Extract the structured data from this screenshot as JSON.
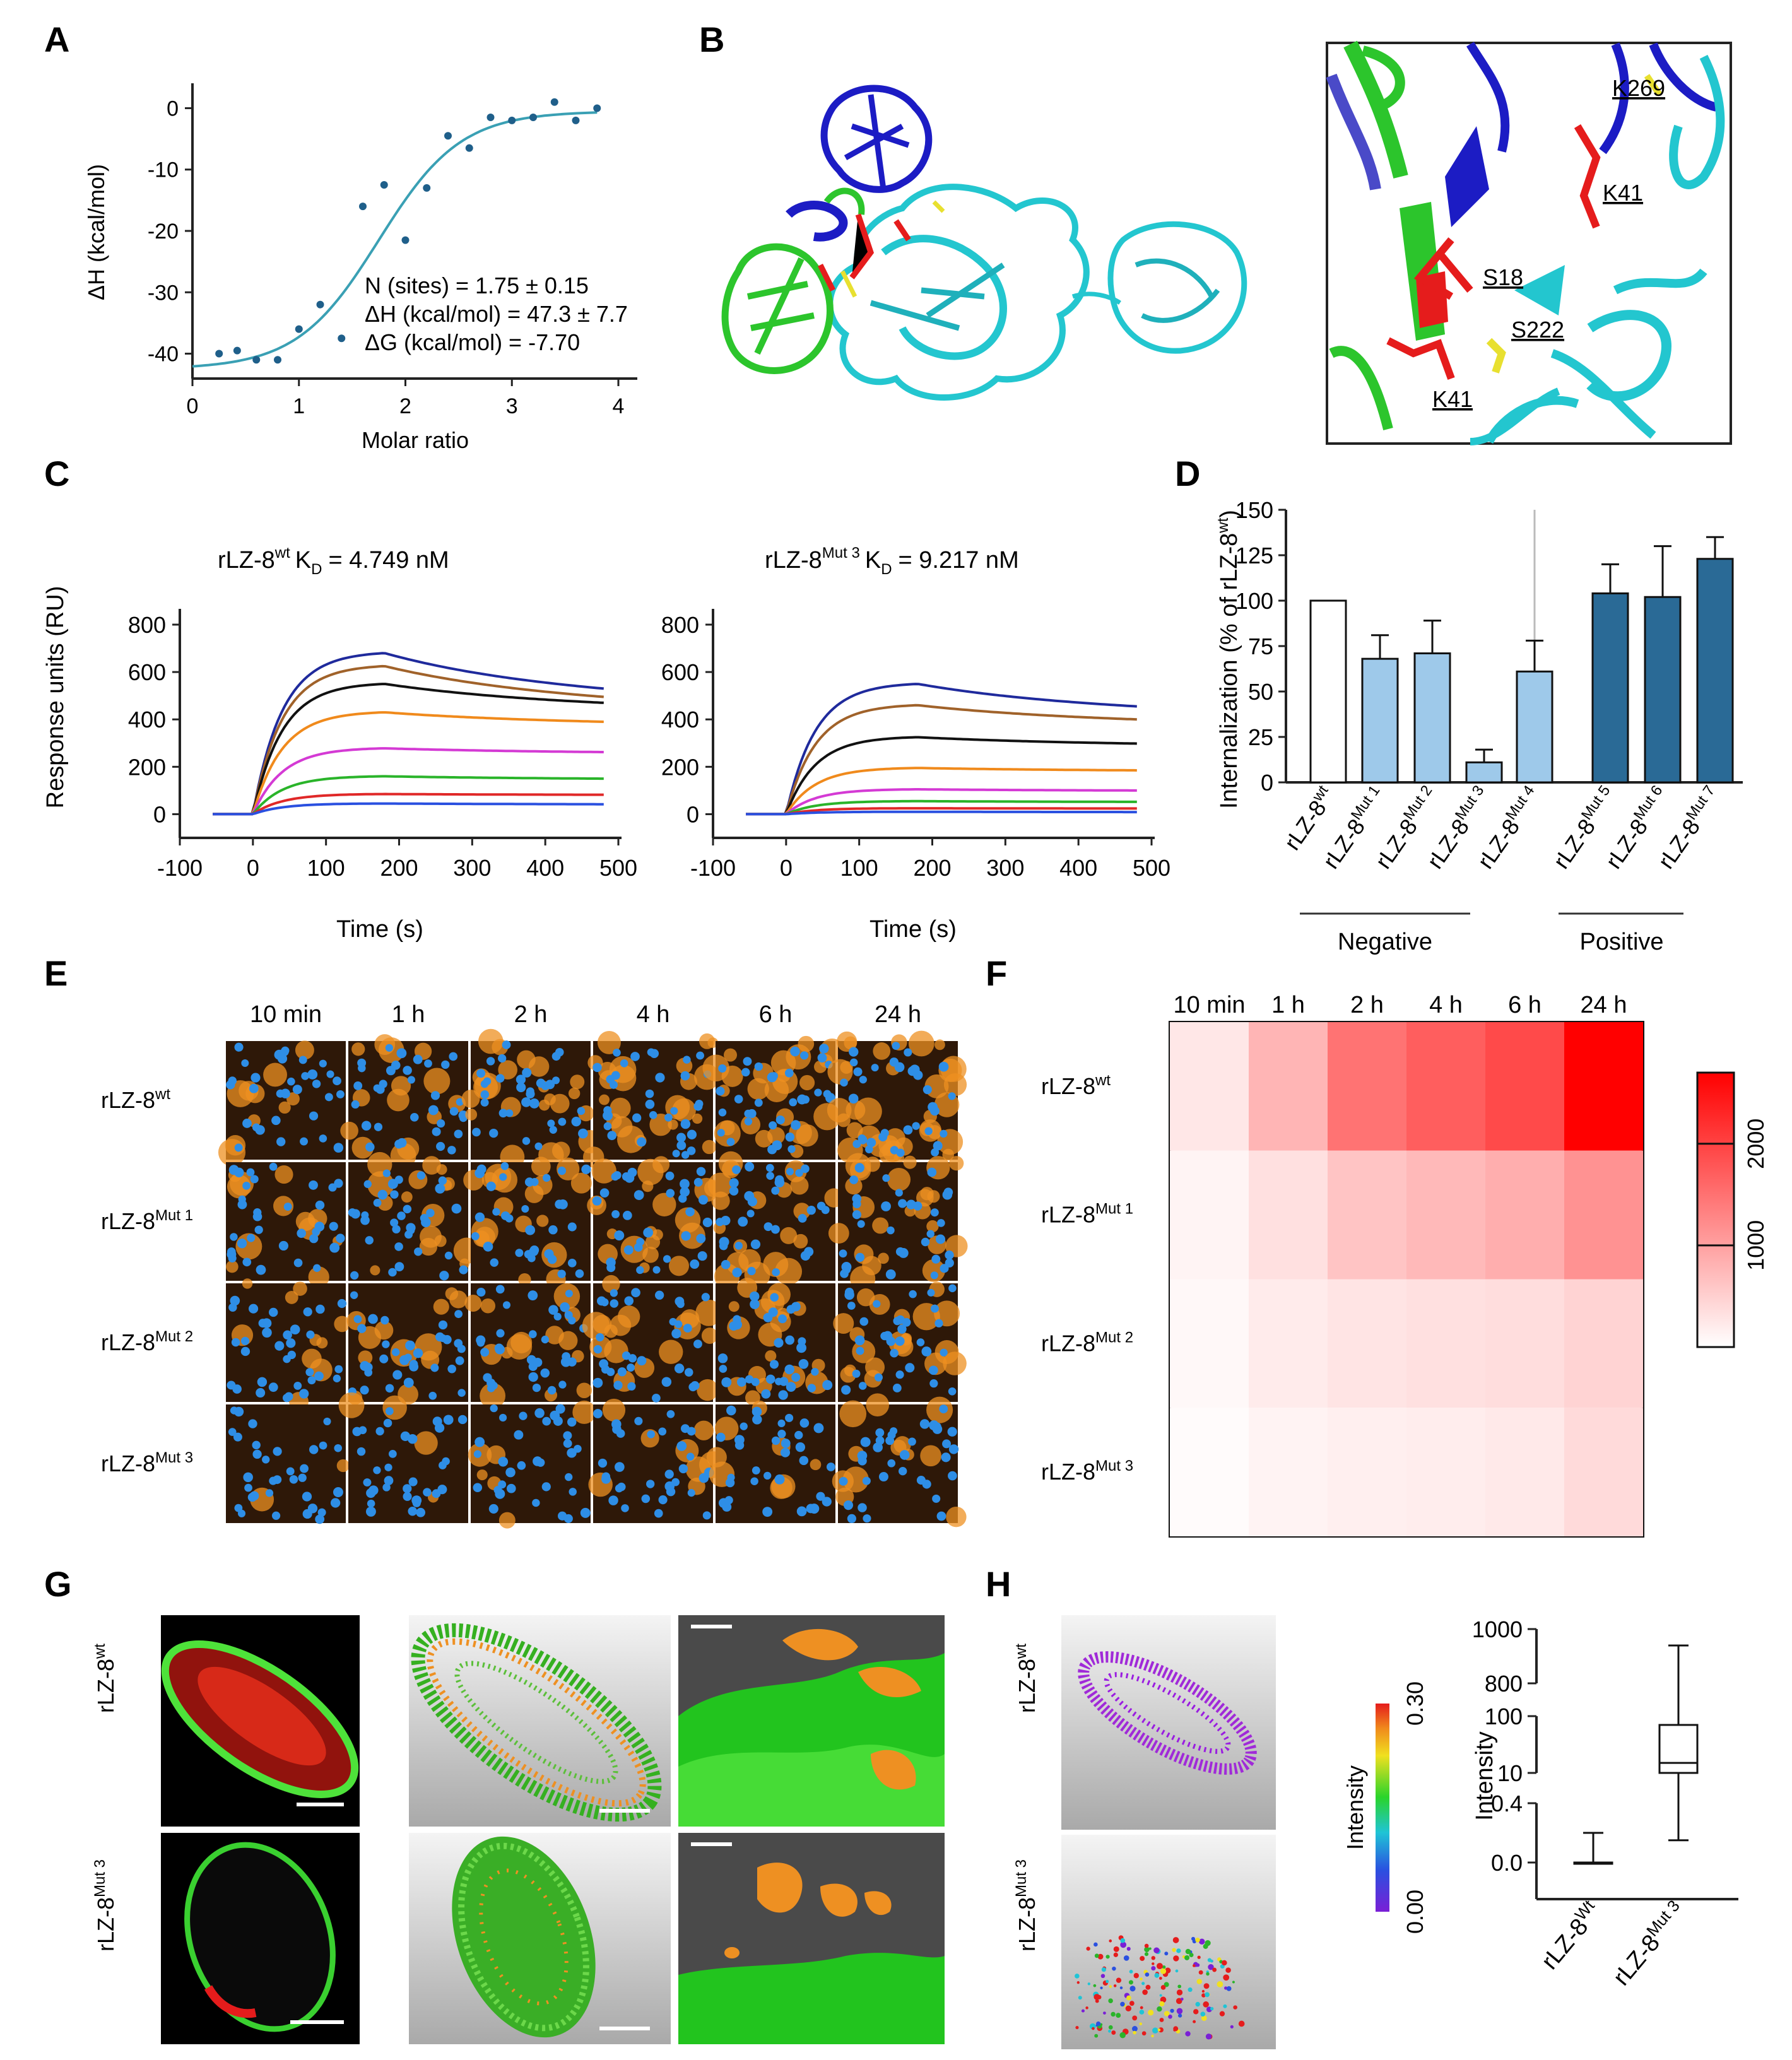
{
  "panels": {
    "A": "A",
    "B": "B",
    "C": "C",
    "D": "D",
    "E": "E",
    "F": "F",
    "G": "G",
    "H": "H"
  },
  "colors": {
    "itc_fit": "#3aa0b4",
    "itc_point": "#1f5f8a",
    "spr_series": [
      "#1f2a9c",
      "#a0622a",
      "#111111",
      "#f08a1c",
      "#d43ad4",
      "#2ab42a",
      "#e02828",
      "#2a50e0"
    ],
    "bar_negative": "#9ec9ea",
    "bar_positive": "#2a6a96",
    "bar_wt": "#ffffff",
    "heat_low": "#ffffff",
    "heat_high": "#ff0000",
    "green": "#2cc52c",
    "cyan": "#23c6cf",
    "blue": "#1c1cc4",
    "red": "#e51c1c",
    "yellow": "#e8e030",
    "orange": "#ee9022",
    "nuclei": "#2e8ee6"
  },
  "chart_data": [
    {
      "id": "A",
      "type": "scatter",
      "xlabel": "Molar ratio",
      "ylabel": "ΔH (kcal/mol)",
      "xlim": [
        0,
        4
      ],
      "ylim": [
        -42,
        2
      ],
      "xticks": [
        "0",
        "1",
        "2",
        "3",
        "4"
      ],
      "yticks": [
        "0",
        "-10",
        "-20",
        "-30",
        "-40"
      ],
      "x": [
        0.25,
        0.42,
        0.6,
        0.8,
        1.0,
        1.2,
        1.4,
        1.6,
        1.8,
        2.0,
        2.2,
        2.4,
        2.6,
        2.8,
        3.0,
        3.2,
        3.4,
        3.6,
        3.8
      ],
      "y": [
        -40,
        -39.5,
        -41,
        -41,
        -36,
        -32,
        -37.5,
        -16,
        -12.5,
        -21.5,
        -13,
        -4.5,
        -6.5,
        -1.5,
        -2,
        -1.5,
        1,
        -2,
        0
      ],
      "annotations": [
        "N (sites) = 1.75 ± 0.15",
        "ΔH (kcal/mol) = 47.3 ± 7.7",
        "ΔG (kcal/mol) = -7.70"
      ]
    },
    {
      "id": "C-left",
      "type": "line",
      "title_main": "rLZ-8",
      "title_sup": "wt",
      "title_k": "K",
      "title_sub": "D",
      "title_val": "= 4.749 nM",
      "xlabel": "Time (s)",
      "ylabel": "Response units (RU)",
      "xlim": [
        -100,
        500
      ],
      "ylim": [
        -100,
        800
      ],
      "xticks": [
        "-100",
        "0",
        "100",
        "200",
        "300",
        "400",
        "500"
      ],
      "yticks": [
        "0",
        "200",
        "400",
        "600",
        "800"
      ],
      "series": [
        {
          "name": "c1",
          "plateau": 680,
          "end": 530
        },
        {
          "name": "c2",
          "plateau": 625,
          "end": 495
        },
        {
          "name": "c3",
          "plateau": 550,
          "end": 470
        },
        {
          "name": "c4",
          "plateau": 430,
          "end": 390
        },
        {
          "name": "c5",
          "plateau": 278,
          "end": 262
        },
        {
          "name": "c6",
          "plateau": 160,
          "end": 150
        },
        {
          "name": "c7",
          "plateau": 85,
          "end": 82
        },
        {
          "name": "c8",
          "plateau": 45,
          "end": 42
        }
      ]
    },
    {
      "id": "C-right",
      "type": "line",
      "title_main": "rLZ-8",
      "title_sup": "Mut 3",
      "title_k": "K",
      "title_sub": "D",
      "title_val": "= 9.217 nM",
      "xlabel": "Time (s)",
      "ylabel": "",
      "xlim": [
        -100,
        500
      ],
      "ylim": [
        -100,
        800
      ],
      "xticks": [
        "-100",
        "0",
        "100",
        "200",
        "300",
        "400",
        "500"
      ],
      "yticks": [
        "0",
        "200",
        "400",
        "600",
        "800"
      ],
      "series": [
        {
          "name": "c1",
          "plateau": 550,
          "end": 455
        },
        {
          "name": "c2",
          "plateau": 460,
          "end": 400
        },
        {
          "name": "c3",
          "plateau": 325,
          "end": 298
        },
        {
          "name": "c4",
          "plateau": 195,
          "end": 185
        },
        {
          "name": "c5",
          "plateau": 105,
          "end": 100
        },
        {
          "name": "c6",
          "plateau": 55,
          "end": 52
        },
        {
          "name": "c7",
          "plateau": 25,
          "end": 24
        },
        {
          "name": "c8",
          "plateau": 10,
          "end": 9
        }
      ]
    },
    {
      "id": "D",
      "type": "bar",
      "ylabel_main": "Internalization (% of rLZ-8",
      "ylabel_sup": "wt",
      "ylabel_end": ")",
      "ylim": [
        0,
        150
      ],
      "yticks": [
        "0",
        "25",
        "50",
        "75",
        "100",
        "125",
        "150"
      ],
      "categories": [
        {
          "main": "rLZ-8",
          "sup": "wt"
        },
        {
          "main": "rLZ-8",
          "sup": "Mut 1"
        },
        {
          "main": "rLZ-8",
          "sup": "Mut 2"
        },
        {
          "main": "rLZ-8",
          "sup": "Mut 3"
        },
        {
          "main": "rLZ-8",
          "sup": "Mut 4"
        },
        {
          "main": "rLZ-8",
          "sup": "Mut 5"
        },
        {
          "main": "rLZ-8",
          "sup": "Mut 6"
        },
        {
          "main": "rLZ-8",
          "sup": "Mut 7"
        }
      ],
      "values": [
        100,
        68,
        71,
        11,
        61,
        104,
        102,
        123
      ],
      "errors": [
        0,
        13,
        18,
        7,
        17,
        16,
        28,
        12
      ],
      "groups": [
        "wt",
        "neg",
        "neg",
        "neg",
        "neg",
        "pos",
        "pos",
        "pos"
      ],
      "group_labels": [
        "Negative",
        "Positive"
      ]
    },
    {
      "id": "F",
      "type": "heatmap",
      "columns": [
        "10 min",
        "1 h",
        "2 h",
        "4 h",
        "6 h",
        "24 h"
      ],
      "rows": [
        {
          "main": "rLZ-8",
          "sup": "wt"
        },
        {
          "main": "rLZ-8",
          "sup": "Mut 1"
        },
        {
          "main": "rLZ-8",
          "sup": "Mut 2"
        },
        {
          "main": "rLZ-8",
          "sup": "Mut 3"
        }
      ],
      "values": [
        [
          250,
          780,
          1480,
          1700,
          1920,
          2700
        ],
        [
          120,
          330,
          620,
          740,
          860,
          1150
        ],
        [
          70,
          210,
          290,
          330,
          360,
          470
        ],
        [
          40,
          130,
          170,
          190,
          230,
          390
        ]
      ],
      "range": [
        0,
        2700
      ],
      "colorbar_ticks": [
        "1000",
        "2000"
      ]
    },
    {
      "id": "H-box",
      "type": "box",
      "ylabel": "Intensity",
      "yticks": [
        "1000",
        "800",
        "100",
        "10",
        "0.4",
        "0.0"
      ],
      "categories": [
        {
          "main": "rLZ-8",
          "sup": "Wt"
        },
        {
          "main": "rLZ-8",
          "sup": "Mut 3"
        }
      ],
      "boxes": [
        {
          "min": 0.0,
          "q1": 0.0,
          "median": 0.0,
          "q3": 0.0,
          "max": 0.2
        },
        {
          "min": 0.15,
          "q1": 10,
          "median": 15,
          "q3": 70,
          "max": 900
        }
      ]
    }
  ],
  "panelB": {
    "labels": [
      "K269",
      "K41",
      "S18",
      "S222",
      "K41"
    ]
  },
  "panelE": {
    "columns": [
      "10 min",
      "1 h",
      "2 h",
      "4 h",
      "6 h",
      "24 h"
    ],
    "rows": [
      {
        "main": "rLZ-8",
        "sup": "wt"
      },
      {
        "main": "rLZ-8",
        "sup": "Mut 1"
      },
      {
        "main": "rLZ-8",
        "sup": "Mut 2"
      },
      {
        "main": "rLZ-8",
        "sup": "Mut 3"
      }
    ],
    "orange_density": [
      [
        0.25,
        0.35,
        0.55,
        0.6,
        0.65,
        0.85
      ],
      [
        0.3,
        0.4,
        0.45,
        0.5,
        0.5,
        0.6
      ],
      [
        0.25,
        0.3,
        0.35,
        0.4,
        0.45,
        0.5
      ],
      [
        0.05,
        0.1,
        0.15,
        0.2,
        0.2,
        0.3
      ]
    ]
  },
  "panelG": {
    "rows": [
      {
        "main": "rLZ-8",
        "sup": "wt"
      },
      {
        "main": "rLZ-8",
        "sup": "Mut 3"
      }
    ]
  },
  "panelH": {
    "rows": [
      {
        "main": "rLZ-8",
        "sup": "wt"
      },
      {
        "main": "rLZ-8",
        "sup": "Mut 3"
      }
    ],
    "colorbar_label": "Intensity",
    "colorbar_max": "0.30",
    "colorbar_min": "0.00"
  }
}
